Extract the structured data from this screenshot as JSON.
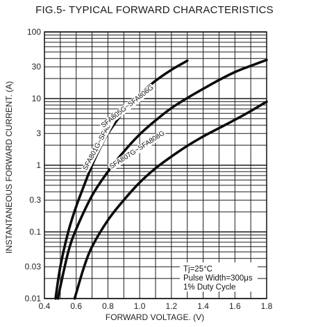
{
  "chart_data": {
    "type": "line",
    "title": "FIG.5- TYPICAL FORWARD CHARACTERISTICS",
    "xlabel": "FORWARD VOLTAGE. (V)",
    "ylabel": "INSTANTANEOUS FORWARD CURRENT. (A)",
    "xlim": [
      0.4,
      1.8
    ],
    "ylim": [
      0.01,
      100
    ],
    "yscale": "log",
    "grid": true,
    "x_ticks": [
      "0.4",
      "0.6",
      "0.8",
      "1.0",
      "1.2",
      "1.4",
      "1.6",
      "1.8"
    ],
    "x_tick_values": [
      0.4,
      0.6,
      0.8,
      1.0,
      1.2,
      1.4,
      1.6,
      1.8
    ],
    "y_ticks": [
      "0.01",
      "0.03",
      "0.1",
      "0.3",
      "1",
      "3",
      "10",
      "30",
      "100"
    ],
    "y_tick_values": [
      0.01,
      0.03,
      0.1,
      0.3,
      1,
      3,
      10,
      30,
      100
    ],
    "series": [
      {
        "name": "SFA801G~SFA804G",
        "x": [
          0.47,
          0.5,
          0.55,
          0.6,
          0.65,
          0.7,
          0.75,
          0.8,
          0.9,
          1.0,
          1.1,
          1.2,
          1.3
        ],
        "y": [
          0.01,
          0.03,
          0.1,
          0.24,
          0.5,
          1.0,
          1.8,
          3.0,
          6.4,
          11.5,
          18.5,
          27.0,
          37.0
        ]
      },
      {
        "name": "SFA805G~SFA806G",
        "x": [
          0.485,
          0.5,
          0.55,
          0.6,
          0.7,
          0.8,
          0.9,
          1.0,
          1.1,
          1.2,
          1.3,
          1.4,
          1.5,
          1.6,
          1.7,
          1.8
        ],
        "y": [
          0.01,
          0.015,
          0.05,
          0.11,
          0.35,
          0.8,
          1.6,
          2.9,
          4.7,
          7.2,
          10.2,
          14.0,
          19.0,
          25.0,
          31.0,
          38.0
        ]
      },
      {
        "name": "SFA807G~SFA808G",
        "x": [
          0.59,
          0.6,
          0.65,
          0.7,
          0.8,
          0.9,
          1.0,
          1.1,
          1.2,
          1.3,
          1.4,
          1.5,
          1.6,
          1.7,
          1.8
        ],
        "y": [
          0.01,
          0.012,
          0.03,
          0.06,
          0.15,
          0.3,
          0.55,
          0.9,
          1.35,
          1.95,
          2.7,
          3.6,
          4.8,
          6.5,
          9.0
        ]
      }
    ],
    "annotation": [
      "Tj=25°C",
      "Pulse Width=300μs",
      "1% Duty Cycle"
    ]
  }
}
